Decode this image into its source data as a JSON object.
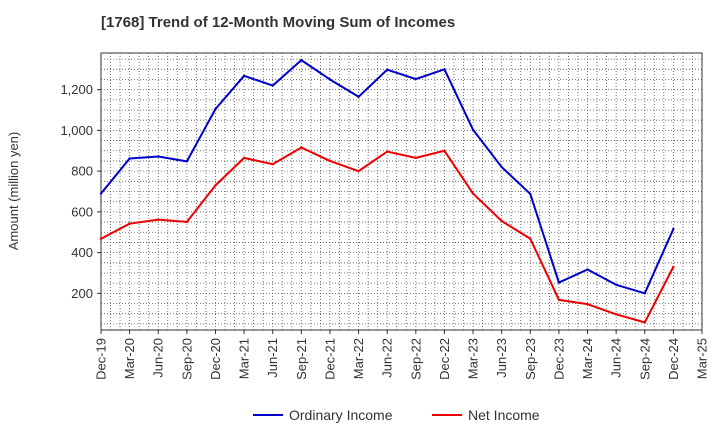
{
  "chart_data": {
    "type": "line",
    "title": "[1768]  Trend of 12-Month Moving Sum of Incomes",
    "xlabel": "",
    "ylabel": "Amount (million yen)",
    "ylim": [
      20,
      1380
    ],
    "yticks": [
      200,
      400,
      600,
      800,
      1000,
      1200
    ],
    "ytick_labels": [
      "200",
      "400",
      "600",
      "800",
      "1,000",
      "1,200"
    ],
    "grid": true,
    "legend_position": "bottom-center",
    "categories": [
      "Dec-19",
      "Mar-20",
      "Jun-20",
      "Sep-20",
      "Dec-20",
      "Mar-21",
      "Jun-21",
      "Sep-21",
      "Dec-21",
      "Mar-22",
      "Jun-22",
      "Sep-22",
      "Dec-22",
      "Mar-23",
      "Jun-23",
      "Sep-23",
      "Dec-23",
      "Mar-24",
      "Jun-24",
      "Sep-24",
      "Dec-24",
      "Mar-25"
    ],
    "series": [
      {
        "name": "Ordinary Income",
        "color": "#0000cc",
        "values": [
          690,
          862,
          872,
          848,
          1105,
          1268,
          1220,
          1345,
          1250,
          1165,
          1298,
          1252,
          1300,
          1003,
          820,
          688,
          253,
          317,
          242,
          200,
          516,
          null
        ]
      },
      {
        "name": "Net Income",
        "color": "#ee0000",
        "values": [
          468,
          542,
          562,
          551,
          730,
          865,
          834,
          916,
          850,
          800,
          896,
          865,
          900,
          690,
          555,
          468,
          168,
          147,
          97,
          57,
          330,
          null
        ]
      }
    ]
  }
}
